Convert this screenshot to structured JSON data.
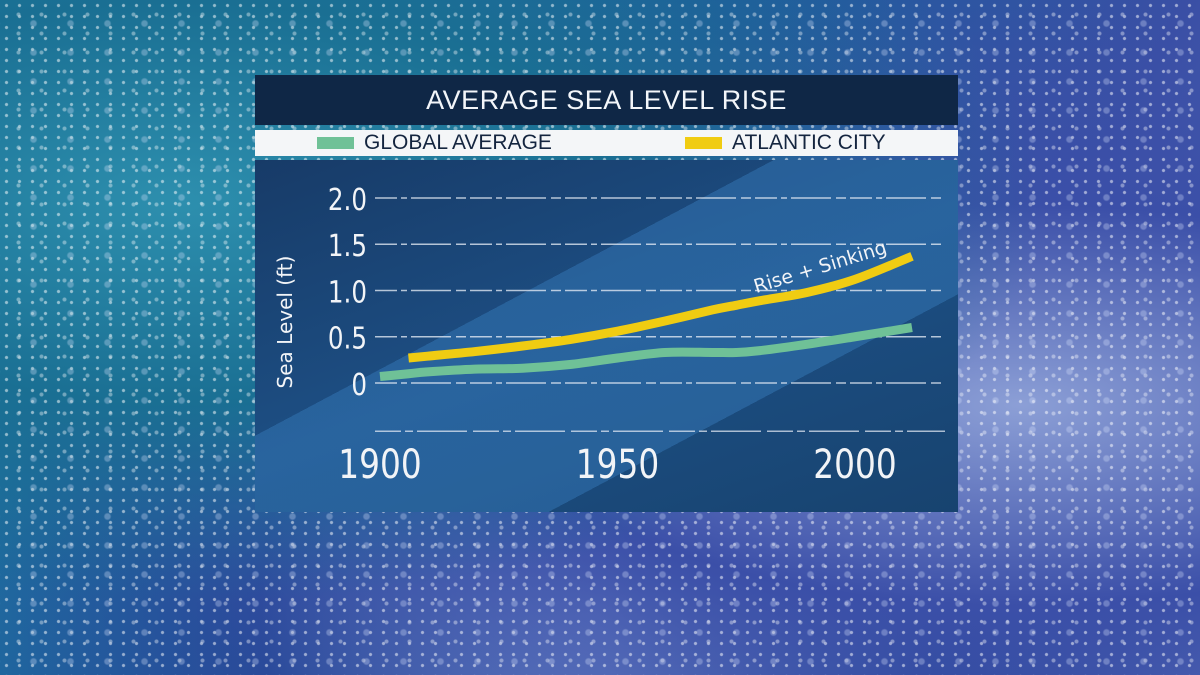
{
  "title": "AVERAGE SEA LEVEL RISE",
  "legend": [
    {
      "label": "GLOBAL AVERAGE",
      "color": "#6fc197"
    },
    {
      "label": "ATLANTIC CITY",
      "color": "#f0cc12"
    }
  ],
  "annotation": "Rise + Sinking",
  "axes": {
    "ylabel": "Sea Level (ft)",
    "yticks": [
      "2.0",
      "1.5",
      "1.0",
      "0.5",
      "0"
    ],
    "xticks": [
      "1900",
      "1950",
      "2000"
    ]
  },
  "chart_data": {
    "type": "line",
    "title": "AVERAGE SEA LEVEL RISE",
    "xlabel": "",
    "ylabel": "Sea Level (ft)",
    "xlim": [
      1900,
      2012
    ],
    "ylim": [
      0,
      2.0
    ],
    "xticks": [
      1900,
      1950,
      2000
    ],
    "yticks": [
      0,
      0.5,
      1.0,
      1.5,
      2.0
    ],
    "grid": true,
    "legend_position": "top",
    "x": [
      1900,
      1906,
      1910,
      1920,
      1930,
      1940,
      1950,
      1960,
      1970,
      1975,
      1980,
      1990,
      2000,
      2012
    ],
    "series": [
      {
        "name": "GLOBAL AVERAGE",
        "color": "#6fc197",
        "values": [
          0.07,
          0.1,
          0.12,
          0.15,
          0.16,
          0.2,
          0.27,
          0.33,
          0.33,
          0.33,
          0.35,
          0.42,
          0.5,
          0.6
        ]
      },
      {
        "name": "ATLANTIC CITY",
        "color": "#f0cc12",
        "values": [
          null,
          0.27,
          0.29,
          0.34,
          0.4,
          0.47,
          0.56,
          0.67,
          0.79,
          0.84,
          0.89,
          0.98,
          1.12,
          1.37
        ]
      }
    ],
    "annotations": [
      {
        "text": "Rise + Sinking",
        "series": "ATLANTIC CITY",
        "x": 1990,
        "y": 1.15
      }
    ]
  }
}
